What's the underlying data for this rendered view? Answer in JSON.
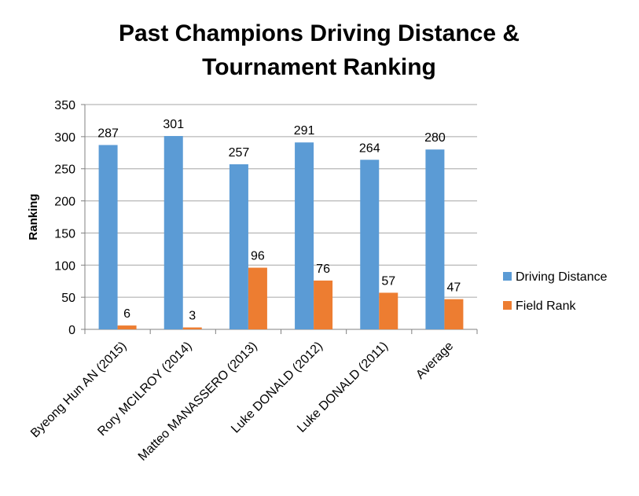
{
  "chart_data": {
    "type": "bar",
    "title_lines": [
      "Past Champions Driving Distance &",
      "Tournament Ranking"
    ],
    "ylabel": "Ranking",
    "xlabel": "",
    "ylim": [
      0,
      350
    ],
    "yticks": [
      0,
      50,
      100,
      150,
      200,
      250,
      300,
      350
    ],
    "grid": true,
    "legend_position": "right",
    "categories": [
      "Byeong Hun AN (2015)",
      "Rory MCILROY (2014)",
      "Matteo MANASSERO (2013)",
      "Luke DONALD (2012)",
      "Luke DONALD (2011)",
      "Average"
    ],
    "series": [
      {
        "name": "Driving Distance",
        "color": "#5B9BD5",
        "values": [
          287,
          301,
          257,
          291,
          264,
          280
        ]
      },
      {
        "name": "Field Rank",
        "color": "#ED7D31",
        "values": [
          6,
          3,
          96,
          76,
          57,
          47
        ]
      }
    ]
  }
}
